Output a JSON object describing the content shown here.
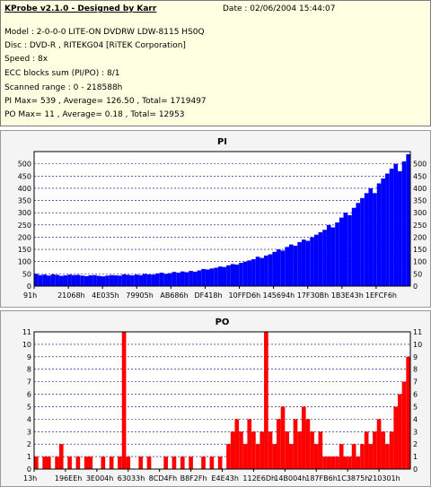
{
  "info": {
    "app_title": "KProbe v2.1.0 - Designed by Karr",
    "date": "Date : 02/06/2004 15:44:07",
    "model": "Model : 2-0-0-0 LITE-ON DVDRW LDW-8115   HS0Q",
    "disc": "Disc : DVD-R , RITEKG04 [RiTEK Corporation]",
    "speed": "Speed : 8x",
    "ecc": "ECC blocks sum (PI/PO) : 8/1",
    "range": "Scanned range : 0 - 218588h",
    "pi_stats": "PI Max= 539 , Average= 126.50 , Total= 1719497",
    "po_stats": "PO Max= 11 , Average= 0.18 , Total= 12953"
  },
  "colors": {
    "pi": "#0000ff",
    "po": "#ff0000",
    "grid": "#000080"
  },
  "chart_data": [
    {
      "type": "area",
      "title": "PI",
      "ylim": [
        0,
        550
      ],
      "yticks": [
        0,
        50,
        100,
        150,
        200,
        250,
        300,
        350,
        400,
        450,
        500
      ],
      "x_tick_labels": [
        "91h",
        "21068h",
        "4E035h",
        "79905h",
        "AB686h",
        "DF418h",
        "10FFD6h",
        "145694h",
        "17F30Bh",
        "1B3E43h",
        "1EFCF6h"
      ],
      "grid": "horizontal dashed",
      "series": [
        {
          "values": [
            50,
            45,
            47,
            43,
            48,
            46,
            42,
            44,
            47,
            45,
            46,
            43,
            41,
            44,
            45,
            42,
            40,
            43,
            45,
            44,
            43,
            48,
            46,
            44,
            47,
            45,
            50,
            48,
            47,
            52,
            55,
            50,
            53,
            58,
            55,
            60,
            57,
            62,
            59,
            64,
            70,
            68,
            72,
            75,
            80,
            78,
            85,
            90,
            88,
            95,
            100,
            105,
            110,
            120,
            115,
            125,
            130,
            140,
            150,
            145,
            160,
            170,
            165,
            180,
            190,
            185,
            200,
            210,
            220,
            230,
            250,
            240,
            260,
            280,
            300,
            290,
            320,
            340,
            360,
            380,
            400,
            380,
            420,
            440,
            460,
            480,
            500,
            470,
            510,
            539
          ]
        }
      ]
    },
    {
      "type": "bar",
      "title": "PO",
      "ylim": [
        0,
        11
      ],
      "yticks": [
        0,
        1,
        2,
        3,
        4,
        5,
        6,
        7,
        8,
        9,
        10,
        11
      ],
      "x_tick_labels": [
        "13h",
        "196EEh",
        "3E004h",
        "63033h",
        "8CD4Fh",
        "B8F2Fh",
        "E4E43h",
        "112E6Dh",
        "14B004h",
        "187FB6h",
        "1C3875h",
        "210301h"
      ],
      "grid": "horizontal dashed",
      "series": [
        {
          "values": [
            1,
            0,
            1,
            1,
            0,
            1,
            2,
            0,
            1,
            0,
            1,
            0,
            1,
            1,
            0,
            0,
            1,
            0,
            1,
            0,
            1,
            11,
            1,
            0,
            0,
            1,
            0,
            1,
            0,
            0,
            0,
            1,
            0,
            1,
            0,
            1,
            0,
            1,
            0,
            0,
            1,
            0,
            1,
            0,
            1,
            0,
            2,
            3,
            4,
            3,
            2,
            4,
            3,
            2,
            3,
            11,
            3,
            2,
            4,
            5,
            3,
            2,
            4,
            3,
            5,
            4,
            3,
            2,
            3,
            1,
            1,
            1,
            1,
            2,
            1,
            1,
            2,
            1,
            2,
            3,
            2,
            3,
            4,
            3,
            2,
            3,
            5,
            6,
            7,
            9
          ]
        }
      ]
    }
  ]
}
